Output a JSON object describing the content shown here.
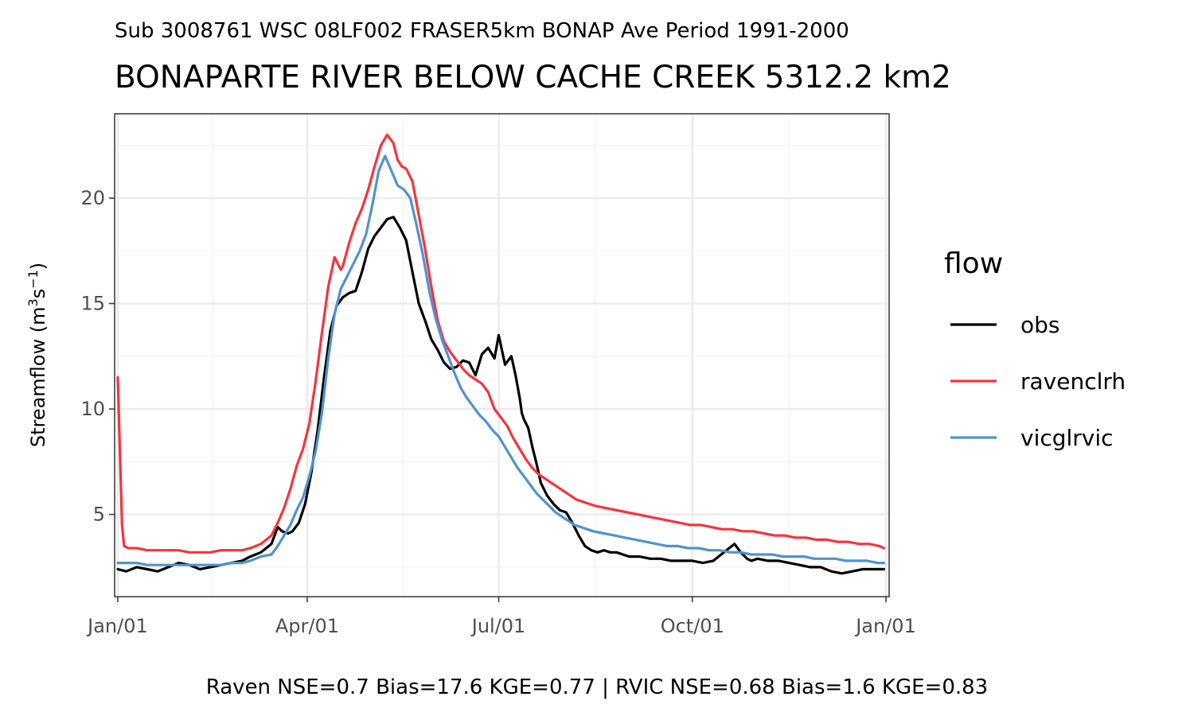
{
  "chart_data": {
    "type": "line",
    "subtitle": "Sub 3008761 WSC 08LF002 FRASER5km BONAP Ave Period 1991-2000",
    "title": "BONAPARTE RIVER BELOW CACHE CREEK 5312.2 km2",
    "xlabel": "",
    "ylabel": "Streamflow (m³s⁻¹)",
    "ylabel_parts": {
      "main": "Streamflow (m",
      "sup1": "3",
      "mid": "s",
      "sup2": "−1",
      "end": ")"
    },
    "caption": "Raven NSE=0.7 Bias=17.6 KGE=0.77 | RVIC NSE=0.68 Bias=1.6 KGE=0.83",
    "x_type": "date",
    "xlim": [
      "01-01",
      "01-01 (next year)"
    ],
    "xlim_days": [
      -1.5,
      366.5
    ],
    "ylim": [
      1.1,
      24.0
    ],
    "x_ticks": [
      {
        "label": "Jan/01",
        "day": 0
      },
      {
        "label": "Apr/01",
        "day": 90
      },
      {
        "label": "Jul/01",
        "day": 181
      },
      {
        "label": "Oct/01",
        "day": 273
      },
      {
        "label": "Jan/01",
        "day": 365
      }
    ],
    "x_minor_days": [
      45,
      135.5,
      227,
      319
    ],
    "y_ticks": [
      5,
      10,
      15,
      20
    ],
    "y_minor": [
      2.5,
      7.5,
      12.5,
      17.5,
      22.5
    ],
    "grid": true,
    "legend": {
      "title": "flow",
      "position": "right"
    },
    "series": [
      {
        "name": "obs",
        "color": "#000000",
        "x": [
          "01-01",
          "01-05",
          "01-10",
          "01-15",
          "01-20",
          "01-25",
          "01-30",
          "02-04",
          "02-09",
          "02-14",
          "02-19",
          "02-24",
          "03-01",
          "03-05",
          "03-10",
          "03-15",
          "03-18",
          "03-20",
          "03-23",
          "03-25",
          "03-28",
          "03-31",
          "04-03",
          "04-06",
          "04-09",
          "04-12",
          "04-15",
          "04-18",
          "04-21",
          "04-24",
          "04-27",
          "04-30",
          "05-03",
          "05-06",
          "05-09",
          "05-12",
          "05-15",
          "05-18",
          "05-21",
          "05-24",
          "05-27",
          "05-30",
          "06-02",
          "06-05",
          "06-08",
          "06-11",
          "06-14",
          "06-17",
          "06-20",
          "06-23",
          "06-26",
          "06-29",
          "07-01",
          "07-04",
          "07-07",
          "07-09",
          "07-11",
          "07-12",
          "07-13",
          "07-15",
          "07-17",
          "07-19",
          "07-21",
          "07-24",
          "07-27",
          "07-30",
          "08-02",
          "08-05",
          "08-08",
          "08-11",
          "08-14",
          "08-17",
          "08-20",
          "08-23",
          "08-26",
          "08-29",
          "09-01",
          "09-06",
          "09-11",
          "09-16",
          "09-21",
          "09-26",
          "10-01",
          "10-06",
          "10-11",
          "10-16",
          "10-21",
          "10-24",
          "10-27",
          "10-29",
          "11-01",
          "11-06",
          "11-11",
          "11-16",
          "11-21",
          "11-26",
          "12-01",
          "12-06",
          "12-11",
          "12-16",
          "12-21",
          "12-26",
          "12-31"
        ],
        "values": [
          2.4,
          2.3,
          2.5,
          2.4,
          2.3,
          2.5,
          2.7,
          2.6,
          2.4,
          2.5,
          2.6,
          2.7,
          2.8,
          3.0,
          3.2,
          3.6,
          4.4,
          4.2,
          4.1,
          4.2,
          4.6,
          5.5,
          7.0,
          9.0,
          11.5,
          13.7,
          14.9,
          15.3,
          15.5,
          15.6,
          16.5,
          17.6,
          18.2,
          18.6,
          19.0,
          19.1,
          18.6,
          18.0,
          16.5,
          15.0,
          14.2,
          13.3,
          12.8,
          12.2,
          11.9,
          12.0,
          12.3,
          12.2,
          11.6,
          12.6,
          12.9,
          12.4,
          13.5,
          12.1,
          12.5,
          11.6,
          10.5,
          9.8,
          9.5,
          9.1,
          8.2,
          7.4,
          6.5,
          5.9,
          5.5,
          5.2,
          5.1,
          4.6,
          4.0,
          3.5,
          3.3,
          3.2,
          3.3,
          3.2,
          3.2,
          3.1,
          3.0,
          3.0,
          2.9,
          2.9,
          2.8,
          2.8,
          2.8,
          2.7,
          2.8,
          3.2,
          3.6,
          3.2,
          2.9,
          2.8,
          2.9,
          2.8,
          2.8,
          2.7,
          2.6,
          2.5,
          2.5,
          2.3,
          2.2,
          2.3,
          2.4,
          2.4,
          2.4
        ]
      },
      {
        "name": "ravenclrh",
        "color": "#f8333c",
        "x": [
          "01-01",
          "01-02",
          "01-03",
          "01-04",
          "01-06",
          "01-10",
          "01-15",
          "01-20",
          "01-25",
          "01-30",
          "02-04",
          "02-09",
          "02-14",
          "02-19",
          "02-24",
          "03-01",
          "03-05",
          "03-10",
          "03-15",
          "03-18",
          "03-21",
          "03-24",
          "03-27",
          "03-30",
          "04-02",
          "04-05",
          "04-08",
          "04-11",
          "04-14",
          "04-17",
          "04-18",
          "04-21",
          "04-24",
          "04-27",
          "04-30",
          "05-03",
          "05-06",
          "05-09",
          "05-12",
          "05-14",
          "05-16",
          "05-18",
          "05-21",
          "05-24",
          "05-27",
          "05-30",
          "06-02",
          "06-05",
          "06-08",
          "06-11",
          "06-14",
          "06-17",
          "06-20",
          "06-23",
          "06-26",
          "06-29",
          "07-02",
          "07-05",
          "07-08",
          "07-11",
          "07-14",
          "07-17",
          "07-20",
          "07-23",
          "07-26",
          "07-29",
          "08-01",
          "08-04",
          "08-07",
          "08-10",
          "08-13",
          "08-16",
          "08-21",
          "08-26",
          "08-31",
          "09-05",
          "09-10",
          "09-15",
          "09-20",
          "09-25",
          "09-30",
          "10-05",
          "10-10",
          "10-15",
          "10-20",
          "10-25",
          "10-30",
          "11-04",
          "11-09",
          "11-14",
          "11-19",
          "11-24",
          "11-29",
          "12-04",
          "12-09",
          "12-14",
          "12-19",
          "12-24",
          "12-29",
          "12-31"
        ],
        "values": [
          11.5,
          8.0,
          4.5,
          3.5,
          3.4,
          3.4,
          3.3,
          3.3,
          3.3,
          3.3,
          3.2,
          3.2,
          3.2,
          3.3,
          3.3,
          3.3,
          3.4,
          3.6,
          4.0,
          4.6,
          5.3,
          6.2,
          7.3,
          8.1,
          9.3,
          11.3,
          13.6,
          15.8,
          17.2,
          16.6,
          16.8,
          17.9,
          18.8,
          19.5,
          20.4,
          21.5,
          22.5,
          23.0,
          22.6,
          21.8,
          21.5,
          21.4,
          20.8,
          19.2,
          17.6,
          15.8,
          14.2,
          13.2,
          12.7,
          12.3,
          11.9,
          11.6,
          11.4,
          11.2,
          10.8,
          10.0,
          9.6,
          9.2,
          8.6,
          8.1,
          7.6,
          7.2,
          6.9,
          6.7,
          6.5,
          6.3,
          6.1,
          5.9,
          5.7,
          5.6,
          5.5,
          5.4,
          5.3,
          5.2,
          5.1,
          5.0,
          4.9,
          4.8,
          4.7,
          4.6,
          4.5,
          4.5,
          4.4,
          4.3,
          4.3,
          4.2,
          4.2,
          4.1,
          4.0,
          4.0,
          3.9,
          3.9,
          3.8,
          3.8,
          3.7,
          3.7,
          3.6,
          3.6,
          3.5,
          3.4
        ]
      },
      {
        "name": "vicglrvic",
        "color": "#4f93cf",
        "x": [
          "01-01",
          "01-05",
          "01-10",
          "01-15",
          "01-20",
          "01-25",
          "01-30",
          "02-04",
          "02-09",
          "02-14",
          "02-19",
          "02-24",
          "03-01",
          "03-05",
          "03-10",
          "03-15",
          "03-18",
          "03-21",
          "03-24",
          "03-27",
          "03-30",
          "04-02",
          "04-05",
          "04-08",
          "04-11",
          "04-14",
          "04-17",
          "04-20",
          "04-23",
          "04-26",
          "04-29",
          "05-02",
          "05-05",
          "05-08",
          "05-11",
          "05-14",
          "05-17",
          "05-20",
          "05-23",
          "05-26",
          "05-29",
          "06-01",
          "06-04",
          "06-07",
          "06-10",
          "06-13",
          "06-16",
          "06-19",
          "06-22",
          "06-25",
          "06-28",
          "07-01",
          "07-04",
          "07-07",
          "07-10",
          "07-13",
          "07-16",
          "07-19",
          "07-22",
          "07-25",
          "07-28",
          "07-31",
          "08-03",
          "08-06",
          "08-09",
          "08-12",
          "08-15",
          "08-20",
          "08-25",
          "08-30",
          "09-04",
          "09-09",
          "09-14",
          "09-19",
          "09-24",
          "09-29",
          "10-04",
          "10-09",
          "10-14",
          "10-19",
          "10-24",
          "10-29",
          "11-03",
          "11-08",
          "11-13",
          "11-18",
          "11-23",
          "11-28",
          "12-03",
          "12-08",
          "12-13",
          "12-18",
          "12-23",
          "12-28",
          "12-31"
        ],
        "values": [
          2.7,
          2.7,
          2.7,
          2.6,
          2.6,
          2.6,
          2.6,
          2.6,
          2.6,
          2.6,
          2.6,
          2.7,
          2.7,
          2.8,
          3.0,
          3.1,
          3.5,
          4.0,
          4.5,
          5.2,
          5.8,
          6.8,
          8.0,
          9.8,
          12.4,
          14.5,
          15.7,
          16.3,
          16.9,
          17.5,
          18.3,
          19.7,
          21.3,
          22.0,
          21.3,
          20.6,
          20.4,
          20.0,
          18.7,
          17.3,
          15.6,
          14.3,
          13.3,
          12.5,
          11.7,
          11.0,
          10.5,
          10.1,
          9.7,
          9.4,
          9.0,
          8.7,
          8.2,
          7.7,
          7.2,
          6.8,
          6.4,
          6.0,
          5.7,
          5.4,
          5.1,
          4.9,
          4.7,
          4.5,
          4.4,
          4.3,
          4.2,
          4.1,
          4.0,
          3.9,
          3.8,
          3.7,
          3.6,
          3.5,
          3.5,
          3.4,
          3.4,
          3.3,
          3.3,
          3.2,
          3.2,
          3.1,
          3.1,
          3.1,
          3.0,
          3.0,
          3.0,
          2.9,
          2.9,
          2.9,
          2.8,
          2.8,
          2.8,
          2.7,
          2.7
        ]
      }
    ]
  }
}
